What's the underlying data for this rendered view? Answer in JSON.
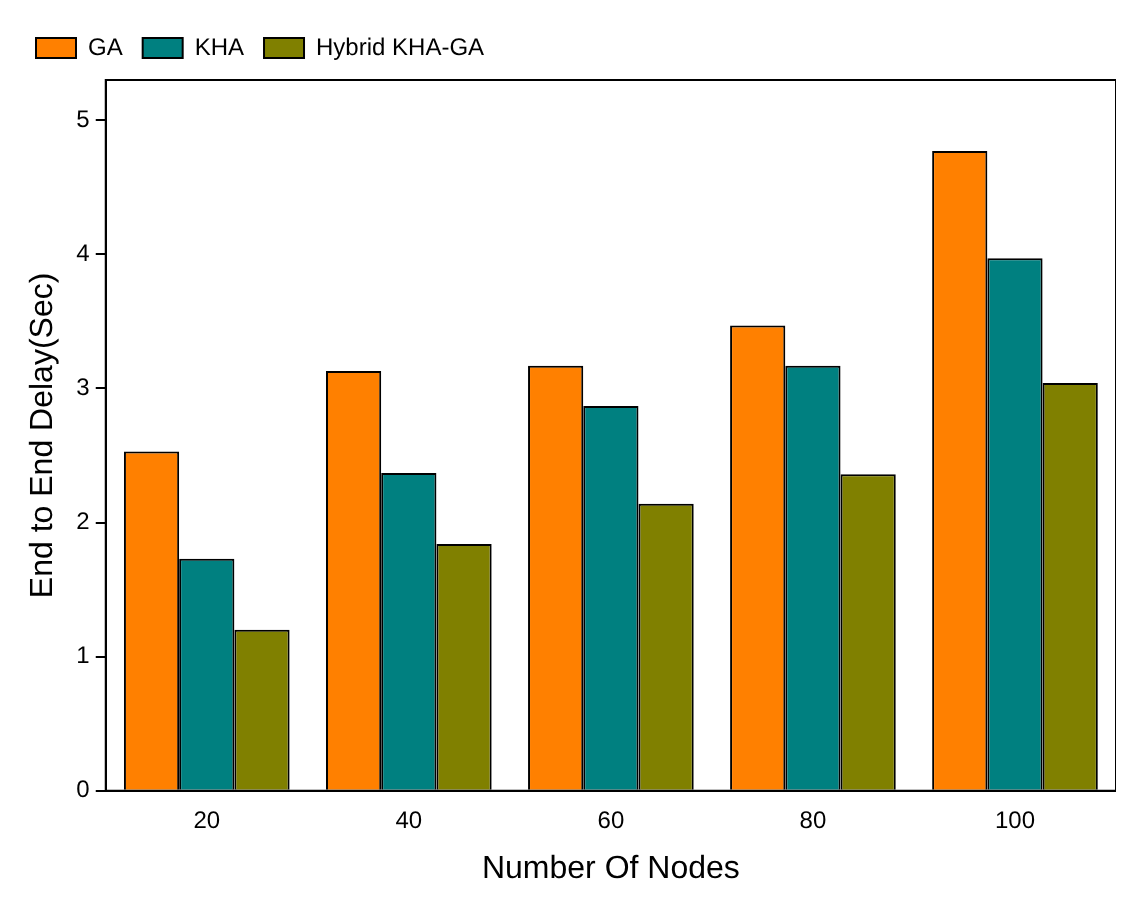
{
  "chart_data": {
    "type": "bar",
    "xlabel": "Number Of Nodes",
    "ylabel": "End to End Delay(Sec)",
    "categories": [
      "20",
      "40",
      "60",
      "80",
      "100"
    ],
    "series": [
      {
        "name": "GA",
        "color": "#ff8000",
        "values": [
          2.53,
          3.13,
          3.17,
          3.47,
          4.77
        ]
      },
      {
        "name": "KHA",
        "color": "#008080",
        "values": [
          1.73,
          2.37,
          2.87,
          3.17,
          3.97
        ]
      },
      {
        "name": "Hybrid KHA-GA",
        "color": "#808000",
        "values": [
          1.2,
          1.84,
          2.14,
          2.36,
          3.04
        ]
      }
    ],
    "ylim": [
      0,
      5.3
    ],
    "yticks": [
      0,
      1,
      2,
      3,
      4,
      5
    ],
    "grid": false,
    "legend": "top left"
  }
}
